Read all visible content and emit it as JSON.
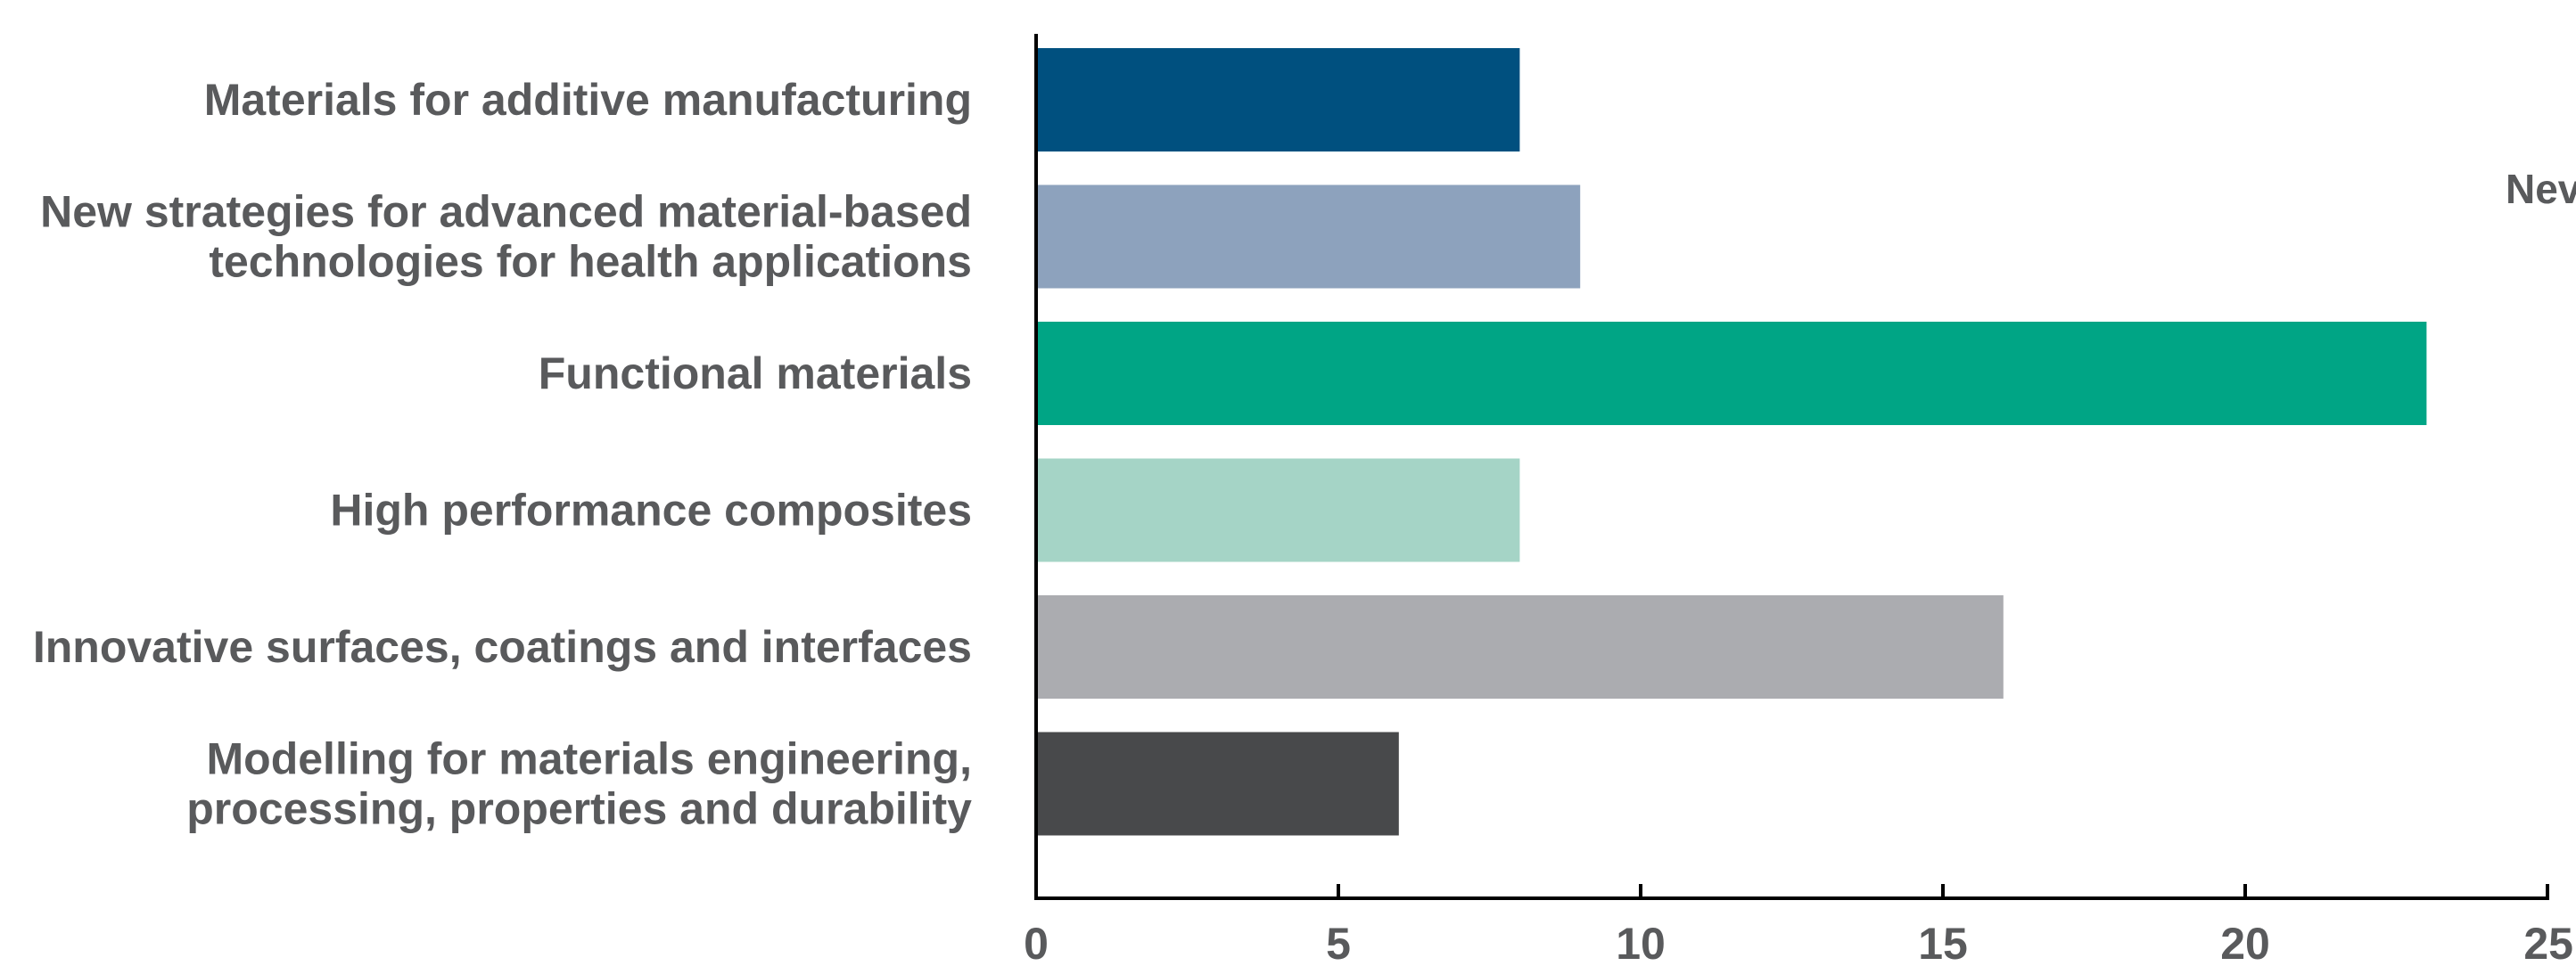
{
  "chart_data": {
    "type": "bar",
    "orientation": "horizontal",
    "categories": [
      [
        "Materials for additive manufacturing"
      ],
      [
        "New strategies for advanced material-based",
        "technologies for health applications"
      ],
      [
        "Functional materials"
      ],
      [
        "High performance composites"
      ],
      [
        "Innovative surfaces, coatings and interfaces"
      ],
      [
        "Modelling for materials engineering,",
        "processing, properties and durability"
      ]
    ],
    "values": [
      8,
      9,
      23,
      8,
      16,
      6
    ],
    "colors": [
      "#00507f",
      "#8da2bd",
      "#00a585",
      "#a5d4c6",
      "#abacb0",
      "#48494b"
    ],
    "xlim": [
      0,
      25
    ],
    "xticks": [
      "0",
      "5",
      "10",
      "15",
      "20",
      "25"
    ],
    "xlabel": "",
    "ylabel": "",
    "title": "",
    "grid": false,
    "clipped_text": "Nev"
  }
}
